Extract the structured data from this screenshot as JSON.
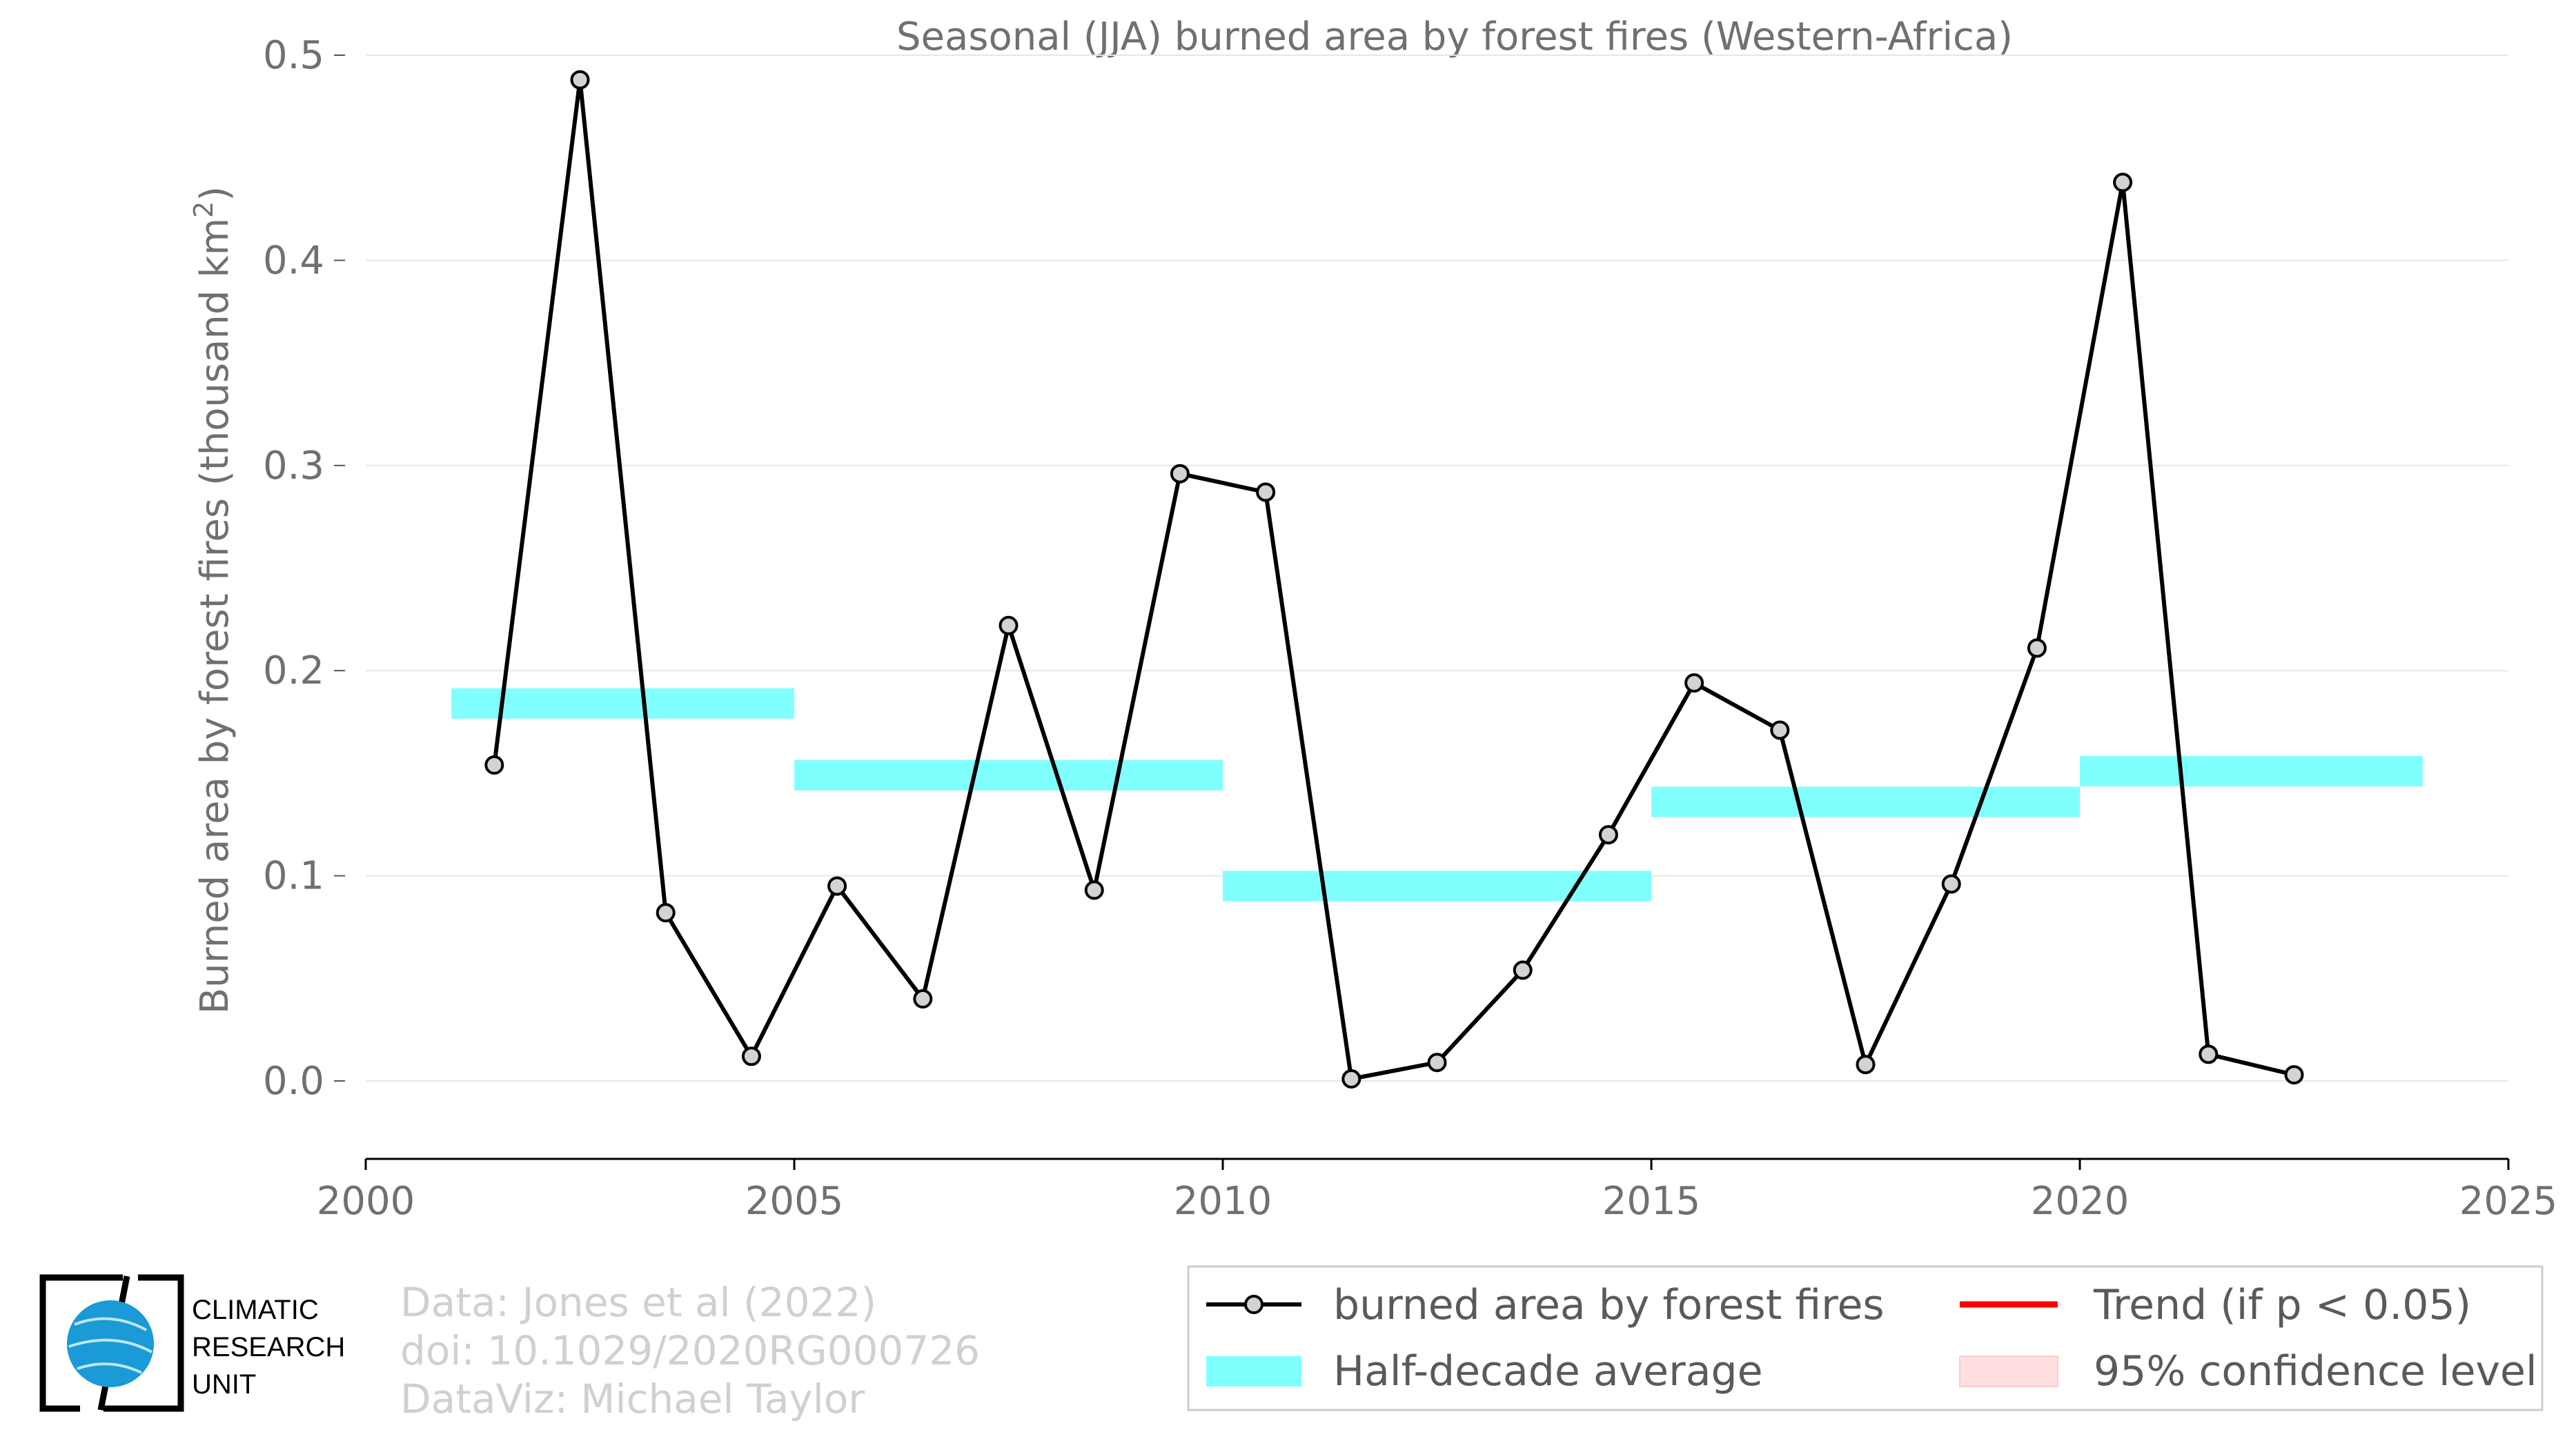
{
  "chart_data": {
    "type": "line",
    "title": "Seasonal (JJA) burned area by forest fires (Western-Africa)",
    "ylabel": "Burned area by forest fires (thousand km",
    "ylabel_sup": "2",
    "ylabel_end": ")",
    "xlim": [
      2000,
      2025
    ],
    "ylim": [
      -0.038,
      0.5
    ],
    "x_ticks": [
      "2000",
      "2005",
      "2010",
      "2015",
      "2020",
      "2025"
    ],
    "y_ticks": [
      "0.0",
      "0.1",
      "0.2",
      "0.3",
      "0.4",
      "0.5"
    ],
    "series": [
      {
        "name": "burned area by forest fires",
        "color": "#000000",
        "marker_fill": "#d3d3d3",
        "x": [
          2001.5,
          2002.5,
          2003.5,
          2004.5,
          2005.5,
          2006.5,
          2007.5,
          2008.5,
          2009.5,
          2010.5,
          2011.5,
          2012.5,
          2013.5,
          2014.5,
          2015.5,
          2016.5,
          2017.5,
          2018.5,
          2019.5,
          2020.5,
          2021.5,
          2022.5
        ],
        "values": [
          0.154,
          0.488,
          0.082,
          0.012,
          0.095,
          0.04,
          0.222,
          0.093,
          0.296,
          0.287,
          0.001,
          0.009,
          0.054,
          0.12,
          0.194,
          0.171,
          0.008,
          0.096,
          0.211,
          0.438,
          0.013,
          0.003
        ]
      }
    ],
    "half_decade_average": {
      "name": "Half-decade average",
      "color": "#80ffff",
      "segments": [
        {
          "x0": 2001,
          "x1": 2005,
          "value": 0.184
        },
        {
          "x0": 2005,
          "x1": 2010,
          "value": 0.149
        },
        {
          "x0": 2010,
          "x1": 2015,
          "value": 0.095
        },
        {
          "x0": 2015,
          "x1": 2020,
          "value": 0.136
        },
        {
          "x0": 2020,
          "x1": 2024,
          "value": 0.151
        }
      ]
    },
    "legend": {
      "placement": "bottom",
      "entries": [
        {
          "key": "line",
          "label": "burned area by forest fires"
        },
        {
          "key": "trend",
          "label": "Trend (if p < 0.05)",
          "color": "#ff0000"
        },
        {
          "key": "half",
          "label": "Half-decade average",
          "color": "#80ffff"
        },
        {
          "key": "ci",
          "label": "95% confidence level",
          "color": "#ffe0e0"
        }
      ]
    },
    "grid": true
  },
  "credits": {
    "line1": "Data: Jones et al (2022)",
    "line2": "doi: 10.1029/2020RG000726",
    "line3": "DataViz: Michael Taylor"
  },
  "logo": {
    "line1": "CLIMATIC",
    "line2": "RESEARCH",
    "line3": "UNIT",
    "globe_color": "#1a9ad6"
  }
}
